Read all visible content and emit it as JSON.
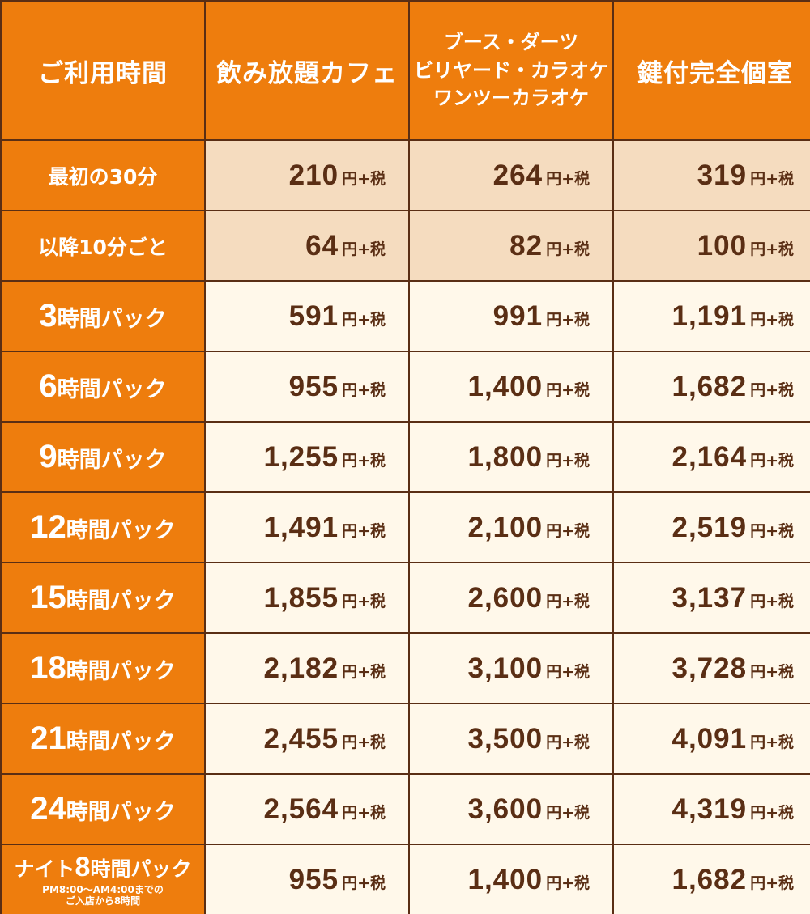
{
  "colors": {
    "header_bg": "#ee7d0d",
    "header_text": "#ffffff",
    "border": "#5a2e14",
    "price_text": "#5a2e14",
    "tinted_row_bg": "#f5dcbf",
    "light_row_bg": "#fff8ea"
  },
  "header": {
    "col0": "ご利用時間",
    "col1": "飲み放題カフェ",
    "col2": [
      "ブース・ダーツ",
      "ビリヤード・カラオケ",
      "ワンツーカラオケ"
    ],
    "col3": "鍵付完全個室"
  },
  "unit": "円+税",
  "rows": [
    {
      "label": "最初の30分",
      "prices": [
        "210",
        "264",
        "319"
      ]
    },
    {
      "label": "以降10分ごと",
      "prices": [
        "64",
        "82",
        "100"
      ]
    },
    {
      "num": "3",
      "suffix": "時間パック",
      "prices": [
        "591",
        "991",
        "1,191"
      ]
    },
    {
      "num": "6",
      "suffix": "時間パック",
      "prices": [
        "955",
        "1,400",
        "1,682"
      ]
    },
    {
      "num": "9",
      "suffix": "時間パック",
      "prices": [
        "1,255",
        "1,800",
        "2,164"
      ]
    },
    {
      "num": "12",
      "suffix": "時間パック",
      "prices": [
        "1,491",
        "2,100",
        "2,519"
      ]
    },
    {
      "num": "15",
      "suffix": "時間パック",
      "prices": [
        "1,855",
        "2,600",
        "3,137"
      ]
    },
    {
      "num": "18",
      "suffix": "時間パック",
      "prices": [
        "2,182",
        "3,100",
        "3,728"
      ]
    },
    {
      "num": "21",
      "suffix": "時間パック",
      "prices": [
        "2,455",
        "3,500",
        "4,091"
      ]
    },
    {
      "num": "24",
      "suffix": "時間パック",
      "prices": [
        "2,564",
        "3,600",
        "4,319"
      ]
    },
    {
      "prefix": "ナイト",
      "num": "8",
      "suffix": "時間パック",
      "note": [
        "PM8:00～AM4:00までの",
        "ご入店から8時間"
      ],
      "prices": [
        "955",
        "1,400",
        "1,682"
      ]
    }
  ]
}
